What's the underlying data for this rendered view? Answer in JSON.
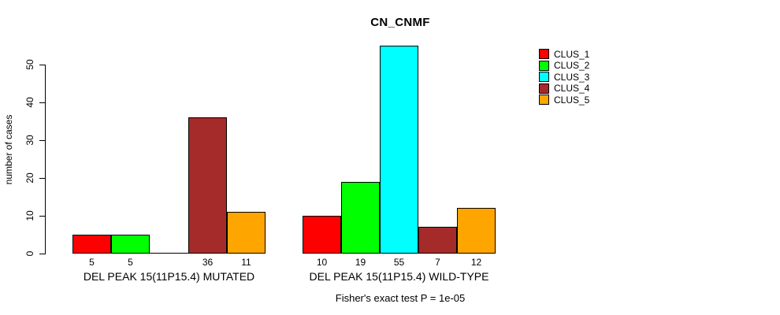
{
  "chart_data": {
    "type": "bar",
    "title": "CN_CNMF",
    "ylabel": "number of cases",
    "xlabel": "",
    "categories": [
      "DEL PEAK 15(11P15.4) MUTATED",
      "DEL PEAK 15(11P15.4) WILD-TYPE"
    ],
    "series": [
      {
        "name": "CLUS_1",
        "color": "#FF0000",
        "values": [
          5,
          10
        ]
      },
      {
        "name": "CLUS_2",
        "color": "#00FF00",
        "values": [
          5,
          19
        ]
      },
      {
        "name": "CLUS_3",
        "color": "#00FFFF",
        "values": [
          0,
          55
        ]
      },
      {
        "name": "CLUS_4",
        "color": "#A52A2A",
        "values": [
          36,
          7
        ]
      },
      {
        "name": "CLUS_5",
        "color": "#FFA500",
        "values": [
          11,
          12
        ]
      }
    ],
    "bar_value_labels": [
      [
        "5",
        "5",
        "",
        "36",
        "11"
      ],
      [
        "10",
        "19",
        "55",
        "7",
        "12"
      ]
    ],
    "yticks": [
      0,
      10,
      20,
      30,
      40,
      50
    ],
    "ylim": [
      0,
      55
    ],
    "grid": false,
    "legend_position": "right",
    "annotation": "Fisher's exact test P = 1e-05"
  }
}
